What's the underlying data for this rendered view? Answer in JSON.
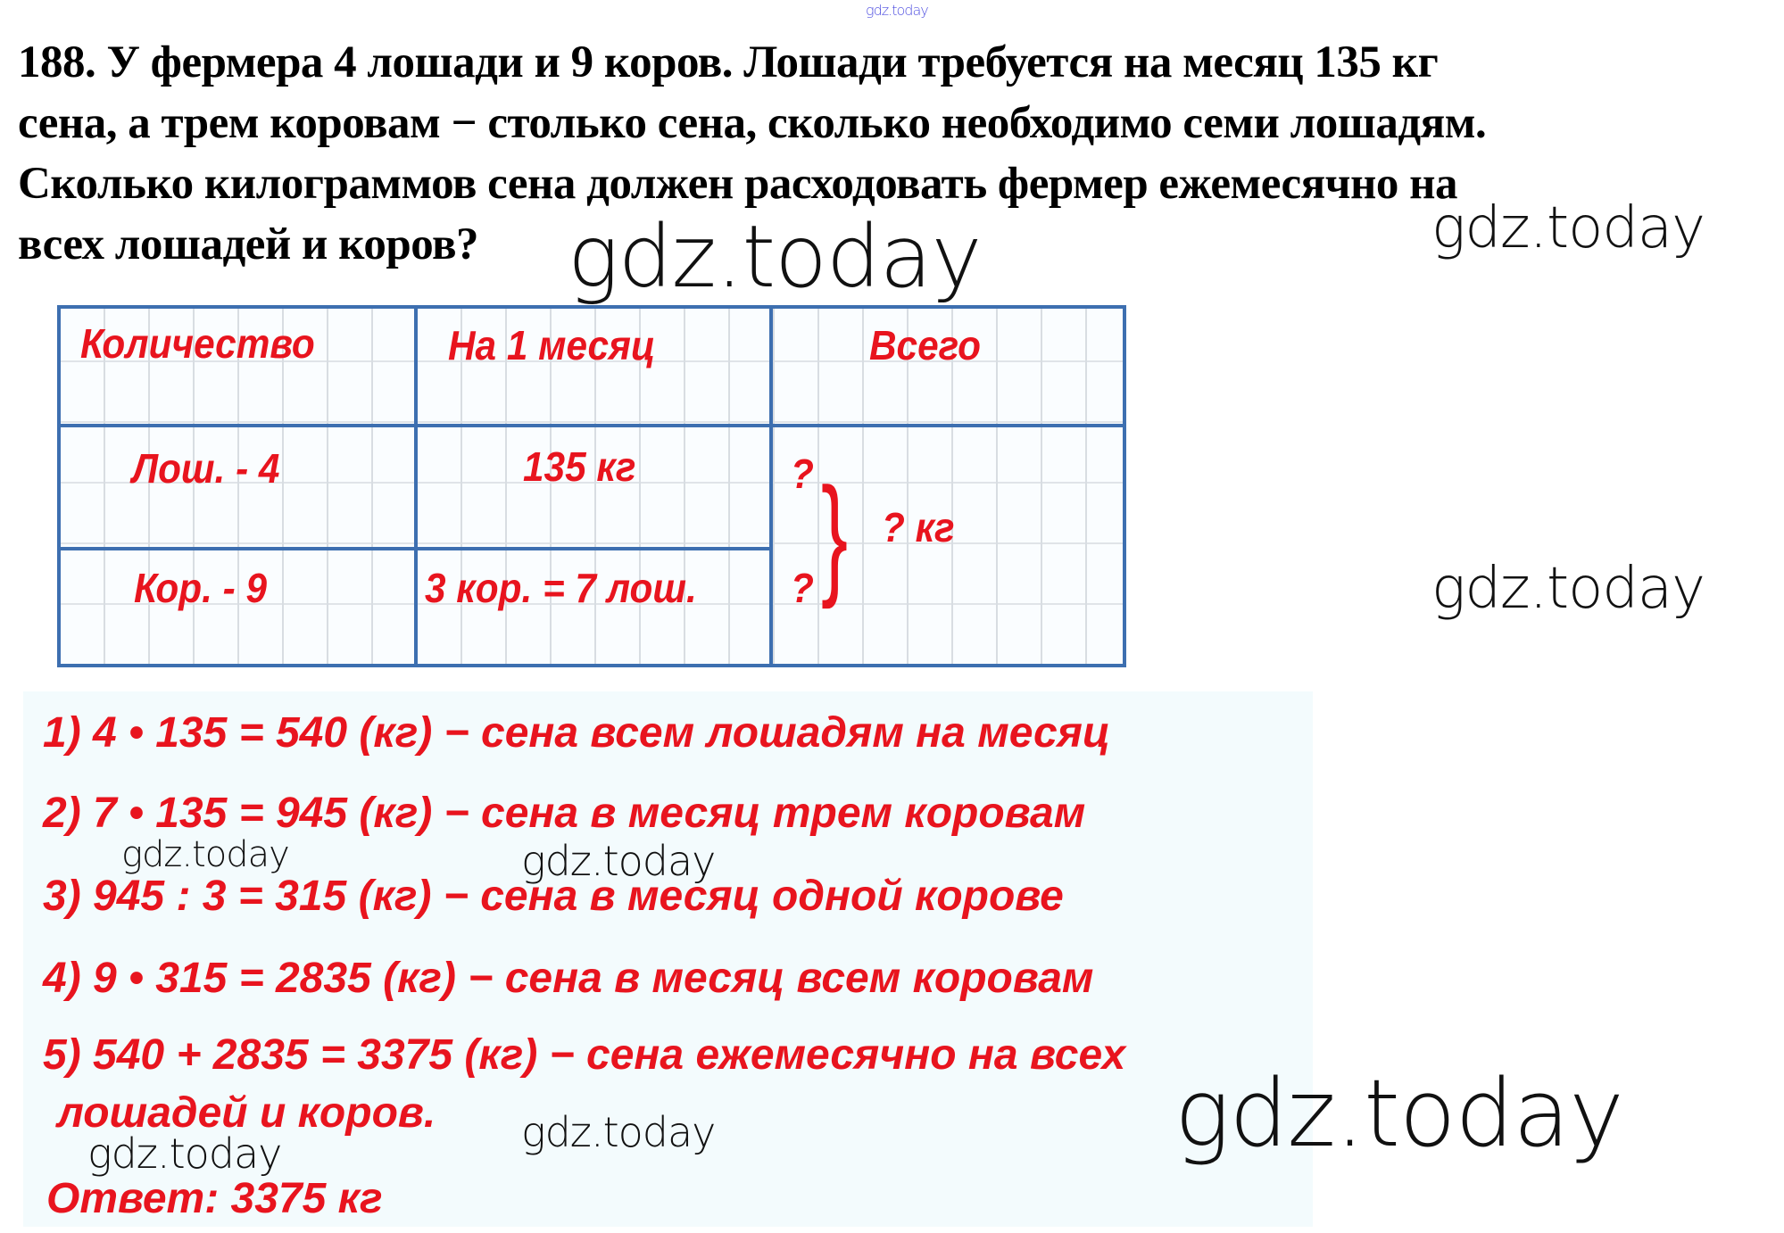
{
  "watermark": "gdz.today",
  "problem": {
    "lines": [
      "188. У фермера 4 лошади и 9 коров. Лошади требуется на месяц 135 кг",
      "сена, а трем коровам − столько сена, сколько необходимо семи лошадям.",
      "Сколько килограммов сена должен расходовать фермер ежемесячно на",
      "всех лошадей и коров?"
    ]
  },
  "table": {
    "headers": [
      "Количество",
      "На 1 месяц",
      "Всего"
    ],
    "rows": [
      {
        "quantity": "Лош. - 4",
        "per_month": "135 кг",
        "total": "?"
      },
      {
        "quantity": "Кор. - 9",
        "per_month": "3 кор. = 7 лош.",
        "total": "?"
      }
    ],
    "grand_total": "? кг"
  },
  "solution": {
    "steps": [
      "1) 4 • 135 = 540 (кг) − сена всем лошадям на месяц",
      "2) 7 • 135 = 945 (кг) − сена в месяц трем коровам",
      "3) 945 : 3 = 315 (кг) − сена в месяц одной корове",
      "4) 9 • 315 = 2835 (кг) − сена в месяц всем коровам",
      "5) 540 + 2835 = 3375 (кг) − сена ежемесячно на всех",
      "лошадей и коров."
    ],
    "answer": "Ответ: 3375 кг"
  },
  "colors": {
    "answer_red": "#e8141e",
    "table_blue": "#3d6fb0",
    "watermark_top": "#5050e0"
  }
}
